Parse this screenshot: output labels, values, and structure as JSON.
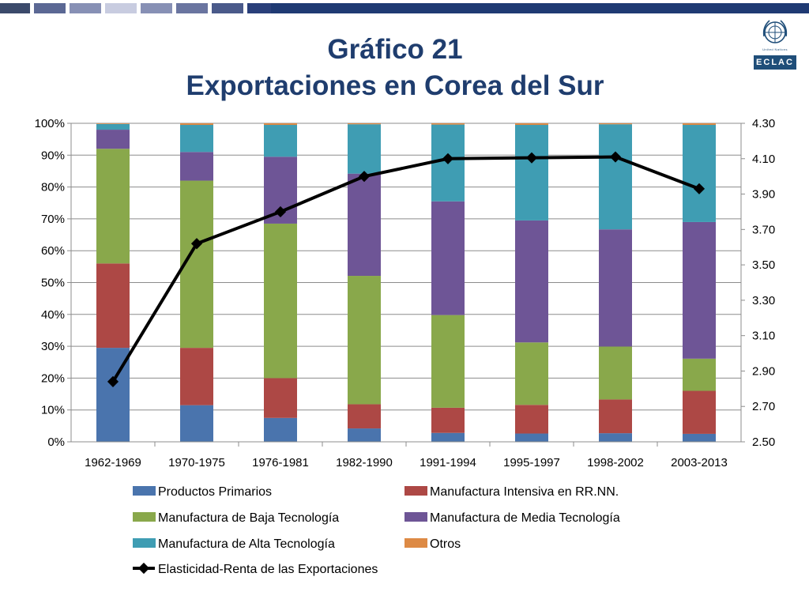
{
  "header": {
    "title_line1": "Gráfico 21",
    "title_line2": "Exportaciones en Corea del Sur",
    "title_color": "#1f3d6e",
    "stripe_colors": [
      "#3b4a6b",
      "#5b6894",
      "#8790b5",
      "#c8cce0",
      "#8790b5",
      "#6a75a0",
      "#4a5a8a",
      "#2a3f7a",
      "#1f3a73"
    ]
  },
  "logo": {
    "emblem": "un-emblem-icon",
    "org_text": "United Nations",
    "acronym": "ECLAC",
    "color": "#1f4e79"
  },
  "chart_data": {
    "type": "bar",
    "stacked": true,
    "categories": [
      "1962-1969",
      "1970-1975",
      "1976-1981",
      "1982-1990",
      "1991-1994",
      "1995-1997",
      "1998-2002",
      "2003-2013"
    ],
    "y_ticks": [
      "0%",
      "10%",
      "20%",
      "30%",
      "40%",
      "50%",
      "60%",
      "70%",
      "80%",
      "90%",
      "100%"
    ],
    "ylim": [
      0,
      100
    ],
    "y2_ticks": [
      "2.50",
      "2.70",
      "2.90",
      "3.10",
      "3.30",
      "3.50",
      "3.70",
      "3.90",
      "4.10",
      "4.30"
    ],
    "y2lim": [
      2.5,
      4.3
    ],
    "grid": true,
    "legend_position": "bottom",
    "series": [
      {
        "name": "Productos Primarios",
        "color": "#4a74ad",
        "values": [
          29.5,
          11.5,
          7.5,
          4.2,
          2.8,
          2.6,
          2.7,
          2.5
        ]
      },
      {
        "name": "Manufactura Intensiva en RR.NN.",
        "color": "#ad4845",
        "values": [
          26.5,
          18.0,
          12.5,
          7.6,
          7.9,
          9.0,
          10.6,
          13.5
        ]
      },
      {
        "name": "Manufactura de Baja Tecnología",
        "color": "#89a84b",
        "values": [
          36.0,
          52.5,
          48.5,
          40.3,
          29.1,
          19.6,
          16.6,
          10.1
        ]
      },
      {
        "name": "Manufactura de Media Tecnología",
        "color": "#6e5596",
        "values": [
          6.0,
          9.0,
          21.0,
          32.1,
          35.7,
          38.3,
          36.8,
          42.9
        ]
      },
      {
        "name": "Manufactura de Alta Tecnología",
        "color": "#3f9db3",
        "values": [
          1.8,
          8.5,
          10.0,
          15.5,
          24.1,
          30.0,
          33.0,
          30.5
        ]
      },
      {
        "name": "Otros",
        "color": "#dd8a45",
        "values": [
          0.2,
          0.5,
          0.5,
          0.3,
          0.4,
          0.5,
          0.3,
          0.5
        ]
      }
    ],
    "line_series": {
      "name": "Elasticidad-Renta de las Exportaciones",
      "axis": "right",
      "color": "#000000",
      "values": [
        2.84,
        3.62,
        3.8,
        4.0,
        4.1,
        4.105,
        4.11,
        3.93
      ]
    }
  }
}
